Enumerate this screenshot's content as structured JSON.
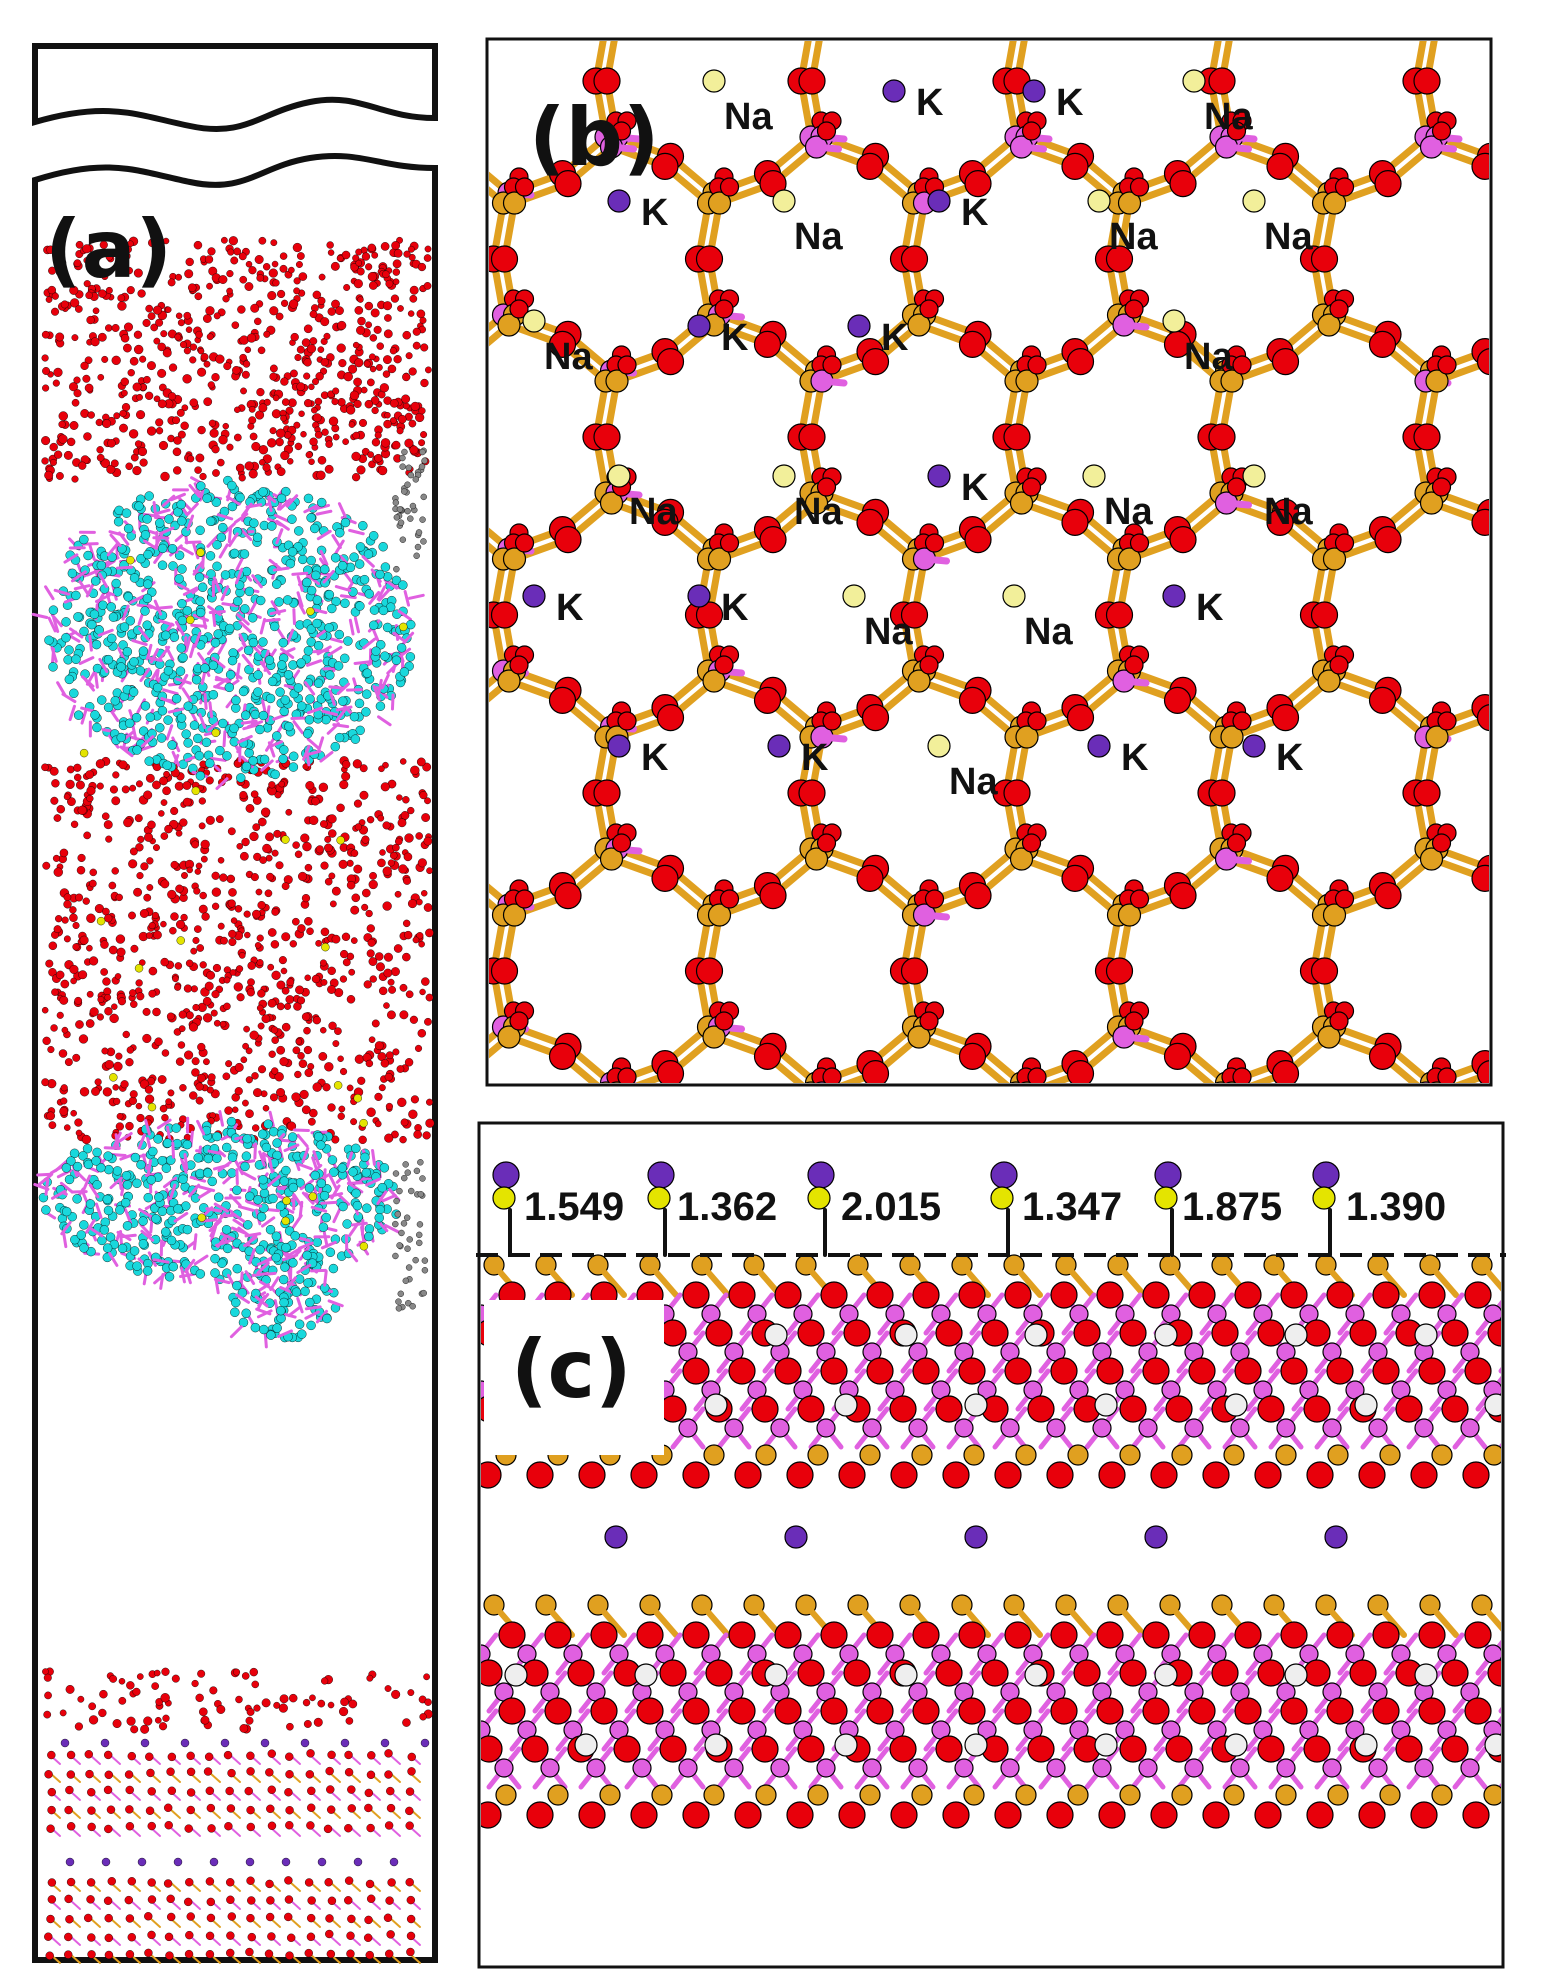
{
  "figure": {
    "panel_a": {
      "label": "(a)"
    },
    "panel_b": {
      "label": "(b)",
      "ions": [
        {
          "el": "Na",
          "label": "Na"
        },
        {
          "el": "K",
          "label": "K"
        },
        {
          "el": "K",
          "label": "K"
        },
        {
          "el": "Na",
          "label": "Na"
        },
        {
          "el": "K",
          "label": "K"
        },
        {
          "el": "Na",
          "label": "Na"
        },
        {
          "el": "K",
          "label": "K"
        },
        {
          "el": "Na",
          "label": "Na"
        },
        {
          "el": "Na",
          "label": "Na"
        },
        {
          "el": "Na",
          "label": "Na"
        },
        {
          "el": "K",
          "label": "K"
        },
        {
          "el": "K",
          "label": "K"
        },
        {
          "el": "Na",
          "label": "Na"
        },
        {
          "el": "Na",
          "label": "Na"
        },
        {
          "el": "Na",
          "label": "Na"
        },
        {
          "el": "K",
          "label": "K"
        },
        {
          "el": "Na",
          "label": "Na"
        },
        {
          "el": "Na",
          "label": "Na"
        },
        {
          "el": "K",
          "label": "K"
        },
        {
          "el": "K",
          "label": "K"
        },
        {
          "el": "Na",
          "label": "Na"
        },
        {
          "el": "Na",
          "label": "Na"
        },
        {
          "el": "K",
          "label": "K"
        },
        {
          "el": "K",
          "label": "K"
        },
        {
          "el": "K",
          "label": "K"
        },
        {
          "el": "Na",
          "label": "Na"
        },
        {
          "el": "K",
          "label": "K"
        },
        {
          "el": "K",
          "label": "K"
        }
      ]
    },
    "panel_c": {
      "label": "(c)",
      "distances": [
        "1.549",
        "1.362",
        "2.015",
        "1.347",
        "1.875",
        "1.390"
      ]
    },
    "colors": {
      "oxygen": "#e8000b",
      "silicon": "#e0a020",
      "aluminum": "#e060e0",
      "potassium": "#6a2db8",
      "sodium": "#f2ef9a",
      "hydrogen": "#eeeeee",
      "carbon": "#19d8dc",
      "frame": "#111111"
    }
  }
}
